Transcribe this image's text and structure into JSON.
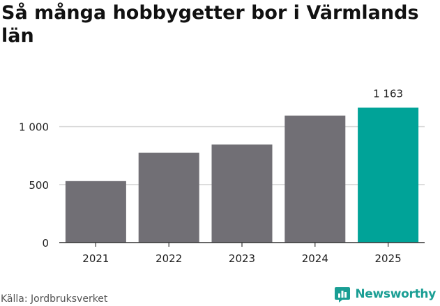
{
  "title": "Så många hobbygetter bor i Värmlands län",
  "source": "Källa: Jordbruksverket",
  "brand": "Newsworthy",
  "colors": {
    "bar": "#716f75",
    "highlight": "#00a398",
    "grid": "#d9d9d9",
    "axis": "#333333",
    "brand": "#1a9e94"
  },
  "chart_data": {
    "type": "bar",
    "categories": [
      "2021",
      "2022",
      "2023",
      "2024",
      "2025"
    ],
    "values": [
      530,
      775,
      845,
      1095,
      1163
    ],
    "highlight_index": 4,
    "data_labels": [
      "",
      "",
      "",
      "",
      "1 163"
    ],
    "yticks": [
      {
        "value": 0,
        "label": "0"
      },
      {
        "value": 500,
        "label": "500"
      },
      {
        "value": 1000,
        "label": "1 000"
      }
    ],
    "ylim": [
      0,
      1250
    ],
    "grid": true,
    "xlabel": "",
    "ylabel": ""
  }
}
